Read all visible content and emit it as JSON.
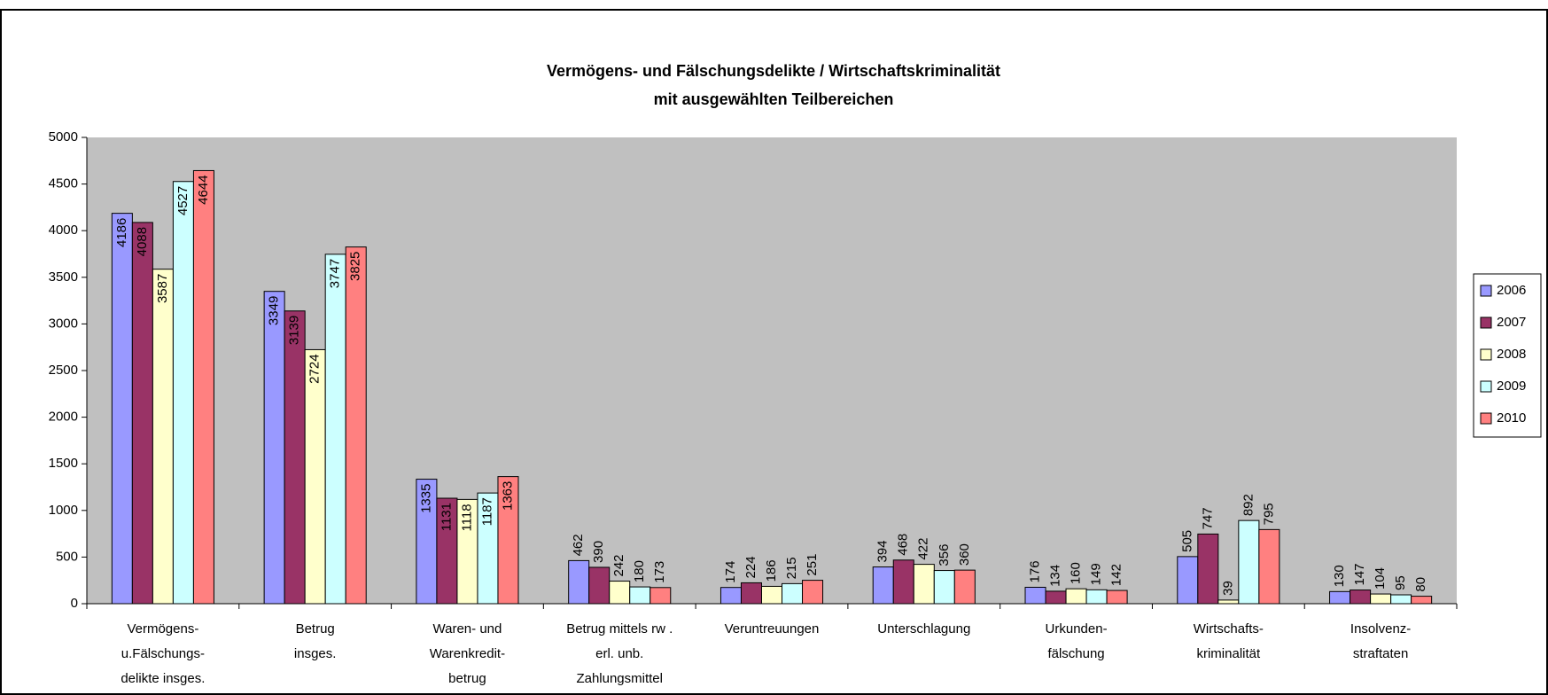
{
  "chart_data": {
    "type": "bar",
    "title": [
      "Vermögens- und Fälschungsdelikte / Wirtschaftskriminalität",
      "mit ausgewählten Teilbereichen"
    ],
    "categories": [
      [
        "Vermögens-",
        "u.Fälschungs-",
        "delikte insges."
      ],
      [
        "Betrug",
        "insges."
      ],
      [
        "Waren- und",
        "Warenkredit-",
        "betrug"
      ],
      [
        "Betrug mittels rw .",
        "erl. unb.",
        "Zahlungsmittel"
      ],
      [
        "Veruntreuungen"
      ],
      [
        "Unterschlagung"
      ],
      [
        "Urkunden-",
        "fälschung"
      ],
      [
        "Wirtschafts-",
        "kriminalität"
      ],
      [
        "Insolvenz-",
        "straftaten"
      ]
    ],
    "series": [
      {
        "name": "2006",
        "color": "#9999ff",
        "values": [
          4186,
          3349,
          1335,
          462,
          174,
          394,
          176,
          505,
          130
        ]
      },
      {
        "name": "2007",
        "color": "#993366",
        "values": [
          4088,
          3139,
          1131,
          390,
          224,
          468,
          134,
          747,
          147
        ]
      },
      {
        "name": "2008",
        "color": "#ffffcc",
        "values": [
          3587,
          2724,
          1118,
          242,
          186,
          422,
          160,
          39,
          104
        ]
      },
      {
        "name": "2009",
        "color": "#ccffff",
        "values": [
          4527,
          3747,
          1187,
          180,
          215,
          356,
          149,
          892,
          95
        ]
      },
      {
        "name": "2010",
        "color": "#ff8080",
        "values": [
          4644,
          3825,
          1363,
          173,
          251,
          360,
          142,
          795,
          80
        ]
      }
    ],
    "ylim": [
      0,
      5000
    ],
    "yticks": [
      0,
      500,
      1000,
      1500,
      2000,
      2500,
      3000,
      3500,
      4000,
      4500,
      5000
    ],
    "legend": "right"
  }
}
